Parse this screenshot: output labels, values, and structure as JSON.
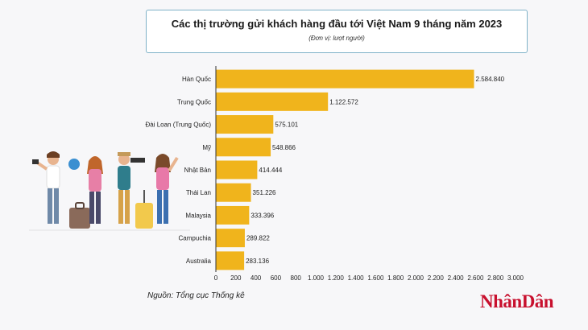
{
  "header": {
    "title": "Các thị trường gửi khách hàng đầu tới Việt Nam 9 tháng năm 2023",
    "subtitle": "(Đơn vị: lượt người)"
  },
  "footer": {
    "source": "Nguồn: Tổng cục Thống kê",
    "logo_text": "NhânDân"
  },
  "colors": {
    "bar": "#f0b41c",
    "axis": "#333333",
    "logo": "#c8102e",
    "title_border": "#7fb2c8"
  },
  "illustration": {
    "icon": "tourists-group-icon"
  },
  "chart_data": {
    "type": "bar",
    "orientation": "horizontal",
    "categories": [
      "Hàn Quốc",
      "Trung Quốc",
      "Đài Loan (Trung Quốc)",
      "Mỹ",
      "Nhật Bản",
      "Thái Lan",
      "Malaysia",
      "Campuchia",
      "Australia"
    ],
    "values": [
      2584840,
      1122572,
      575101,
      548866,
      414444,
      351226,
      333396,
      289822,
      283136
    ],
    "value_labels": [
      "2.584.840",
      "1.122.572",
      "575.101",
      "548.866",
      "414.444",
      "351.226",
      "333.396",
      "289.822",
      "283.136"
    ],
    "x_ticks": [
      0,
      200,
      400,
      600,
      800,
      1000,
      1200,
      1400,
      1600,
      1800,
      2000,
      2200,
      2400,
      2600,
      2800,
      3000
    ],
    "x_tick_labels": [
      "0",
      "200",
      "400",
      "600",
      "800",
      "1.000",
      "1.200",
      "1.400",
      "1.600",
      "1.800",
      "2.000",
      "2.200",
      "2.400",
      "2.600",
      "2.800",
      "3.000"
    ],
    "xlim": [
      0,
      3000
    ],
    "x_tick_unit": 1000,
    "grid": false,
    "legend": "none"
  }
}
